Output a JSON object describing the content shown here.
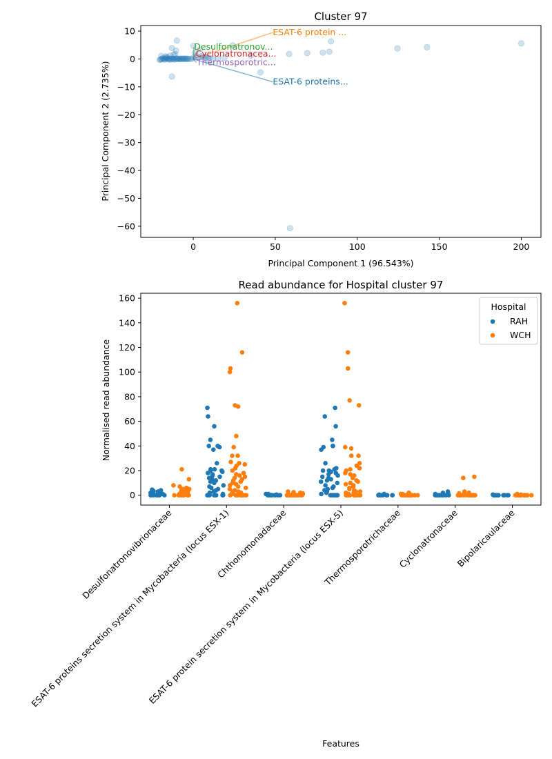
{
  "chart_data": [
    {
      "type": "scatter",
      "title": "Cluster 97",
      "xlabel": "Principal Component 1 (96.543%)",
      "ylabel": "Principal Component 2 (2.735%)",
      "xlim": [
        -32,
        212
      ],
      "ylim": [
        -64,
        12
      ],
      "xticks": [
        0,
        50,
        100,
        150,
        200
      ],
      "yticks": [
        10,
        0,
        -10,
        -20,
        -30,
        -40,
        -50,
        -60
      ],
      "grid": false,
      "point_color": "#1f77b4",
      "points": [
        [
          -20.5,
          -0.3
        ],
        [
          -20,
          -0.2
        ],
        [
          -19.5,
          0
        ],
        [
          -19,
          -0.1
        ],
        [
          -18.5,
          0.3
        ],
        [
          -18,
          0.1
        ],
        [
          -17.5,
          -0.2
        ],
        [
          -17,
          0
        ],
        [
          -16.5,
          0.2
        ],
        [
          -16,
          0.4
        ],
        [
          -15.5,
          -0.1
        ],
        [
          -15,
          0
        ],
        [
          -14.5,
          0.1
        ],
        [
          -14,
          -0.3
        ],
        [
          -13.5,
          0
        ],
        [
          -13,
          0.2
        ],
        [
          -12.5,
          0.1
        ],
        [
          -12,
          0
        ],
        [
          -11.5,
          -0.2
        ],
        [
          -11,
          0.1
        ],
        [
          -10.5,
          0
        ],
        [
          -10,
          0.2
        ],
        [
          -9.5,
          0.1
        ],
        [
          -9,
          0
        ],
        [
          -8.5,
          -0.1
        ],
        [
          -8,
          0.2
        ],
        [
          -7.5,
          0
        ],
        [
          -7,
          0.1
        ],
        [
          -6.5,
          0
        ],
        [
          -6,
          0.2
        ],
        [
          -5.5,
          0
        ],
        [
          -5,
          0.1
        ],
        [
          -4.5,
          0
        ],
        [
          -4,
          0.2
        ],
        [
          -3.5,
          0
        ],
        [
          -3,
          0
        ],
        [
          -2,
          0.1
        ],
        [
          -1,
          0
        ],
        [
          -19.5,
          1.1
        ],
        [
          -17,
          0.9
        ],
        [
          -16,
          0.8
        ],
        [
          -14,
          1.2
        ],
        [
          -12,
          1.5
        ],
        [
          -11,
          1.8
        ],
        [
          -10.5,
          3
        ],
        [
          -10,
          6.6
        ],
        [
          -13,
          3.9
        ],
        [
          -13,
          -6.3
        ],
        [
          0,
          0.4
        ],
        [
          0,
          4.7
        ],
        [
          1,
          2.2
        ],
        [
          2,
          1.3
        ],
        [
          3,
          0.5
        ],
        [
          4,
          3.4
        ],
        [
          5,
          1
        ],
        [
          6,
          0.8
        ],
        [
          7,
          0.6
        ],
        [
          8,
          0.5
        ],
        [
          9,
          0.3
        ],
        [
          10,
          0.4
        ],
        [
          12,
          0.2
        ],
        [
          15,
          0.1
        ],
        [
          19,
          0.5
        ],
        [
          24,
          4.9
        ],
        [
          35,
          1.1
        ],
        [
          41,
          -4.8
        ],
        [
          58.5,
          1.8
        ],
        [
          59,
          -60.7
        ],
        [
          69.5,
          2.1
        ],
        [
          79,
          2.3
        ],
        [
          83,
          2.6
        ],
        [
          84,
          6.3
        ],
        [
          124.5,
          3.8
        ],
        [
          142.5,
          4.2
        ],
        [
          200,
          5.6
        ]
      ],
      "annotations": [
        {
          "text": "ESAT-6 protein ...",
          "x": 48.5,
          "y": 9.5,
          "color": "#ff7f0e"
        },
        {
          "text": "Desulfonatronov...",
          "x": 0.5,
          "y": 4.3,
          "color": "#2ca02c"
        },
        {
          "text": "Cyclonatronacea...",
          "x": 1.5,
          "y": 1.8,
          "color": "#d62728"
        },
        {
          "text": "Thermosporotric...",
          "x": 2,
          "y": -1.3,
          "color": "#9467bd"
        },
        {
          "text": "ESAT-6 proteins...",
          "x": 48.5,
          "y": -8.2,
          "color": "#1f77b4"
        }
      ]
    },
    {
      "type": "strip",
      "title": "Read abundance for Hospital cluster 97",
      "xlabel": "Features",
      "ylabel": "Normalised read abundance",
      "ylim": [
        -8,
        164
      ],
      "yticks": [
        0,
        20,
        40,
        60,
        80,
        100,
        120,
        140,
        160
      ],
      "categories": [
        "Desulfonatronovibrionaceae",
        "ESAT-6 proteins secretion system in Mycobacteria (locus ESX-1)",
        "Chthonomonadaceae",
        "ESAT-6 protein secretion system in Mycobacteria (locus ESX-5)",
        "Thermosporotrichaceae",
        "Cyclonatronaceae",
        "Bipolaricaulaceae"
      ],
      "legend": {
        "title": "Hospital",
        "position": "top-right"
      },
      "series": [
        {
          "name": "RAH",
          "color": "#1f77b4",
          "values": [
            [
              0,
              0,
              0,
              0,
              0,
              0,
              0,
              0,
              0,
              0,
              0.5,
              1,
              1.5,
              2,
              3,
              3.5,
              4,
              4.5
            ],
            [
              0,
              0,
              0,
              0,
              0,
              0,
              0,
              0,
              1,
              2,
              3,
              4,
              5,
              6,
              7,
              8,
              10,
              11,
              12,
              13,
              14,
              15,
              16,
              17,
              18,
              19,
              20,
              20,
              21,
              21,
              26,
              37,
              39,
              40,
              40,
              45,
              56,
              64,
              71
            ],
            [
              0,
              0,
              0,
              0,
              0,
              0,
              0,
              0,
              0,
              0,
              0,
              0,
              0,
              0.5,
              1,
              1
            ],
            [
              0,
              0,
              0,
              0,
              0,
              0,
              0,
              0,
              1,
              2,
              3,
              4,
              5,
              6,
              7,
              8,
              10,
              11,
              12,
              13,
              14,
              15,
              16,
              17,
              18,
              19,
              20,
              20,
              21,
              22,
              26,
              37,
              39,
              40,
              40,
              45,
              56,
              64,
              71
            ],
            [
              0,
              0,
              0,
              0,
              0,
              0,
              0,
              0,
              0,
              0,
              0,
              0,
              0.5,
              1
            ],
            [
              0,
              0,
              0,
              0,
              0,
              0,
              0,
              0,
              0,
              0,
              0,
              0.5,
              1,
              1.5,
              2,
              3
            ],
            [
              0,
              0,
              0,
              0,
              0,
              0,
              0,
              0,
              0,
              0,
              0,
              0,
              0.5
            ]
          ]
        },
        {
          "name": "WCH",
          "color": "#ff7f0e",
          "values": [
            [
              0,
              0,
              0,
              0,
              0,
              0,
              0,
              0,
              0,
              0,
              0,
              0,
              0,
              0,
              0,
              1,
              1,
              2,
              2,
              3,
              3,
              4,
              5,
              5,
              6,
              7,
              8,
              13,
              21
            ],
            [
              0,
              0,
              0,
              0,
              0,
              0,
              0,
              0,
              0,
              0,
              0,
              0,
              1,
              1,
              2,
              2,
              3,
              3,
              4,
              5,
              6,
              7,
              8,
              9,
              10,
              11,
              12,
              13,
              14,
              15,
              16,
              17,
              18,
              20,
              22,
              24,
              25,
              26,
              27,
              32,
              32,
              39,
              48,
              72,
              73,
              100,
              103,
              116,
              156
            ],
            [
              0,
              0,
              0,
              0,
              0,
              0,
              0,
              0,
              0,
              0,
              0,
              0,
              0,
              0,
              0,
              0,
              0,
              0,
              0,
              0.5,
              1,
              1,
              1.5,
              2,
              2.5,
              3
            ],
            [
              0,
              0,
              0,
              0,
              0,
              0,
              0,
              0,
              0,
              0,
              0,
              0,
              1,
              1,
              2,
              2,
              3,
              3,
              4,
              5,
              6,
              7,
              8,
              9,
              10,
              11,
              12,
              14,
              15,
              16,
              17,
              18,
              20,
              21,
              22,
              24,
              26,
              32,
              32,
              38,
              39,
              73,
              77,
              103,
              116,
              156
            ],
            [
              0,
              0,
              0,
              0,
              0,
              0,
              0,
              0,
              0,
              0,
              0,
              0,
              0,
              0,
              0,
              0,
              0,
              0.5,
              1,
              1,
              1.5,
              2
            ],
            [
              0,
              0,
              0,
              0,
              0,
              0,
              0,
              0,
              0,
              0,
              0,
              0,
              0,
              0,
              0,
              0,
              0,
              0,
              0.5,
              1,
              1.5,
              2,
              3,
              14,
              15
            ],
            [
              0,
              0,
              0,
              0,
              0,
              0,
              0,
              0,
              0,
              0,
              0,
              0,
              0,
              0,
              0,
              0,
              0,
              0,
              0,
              0.5,
              1
            ]
          ]
        }
      ]
    }
  ]
}
